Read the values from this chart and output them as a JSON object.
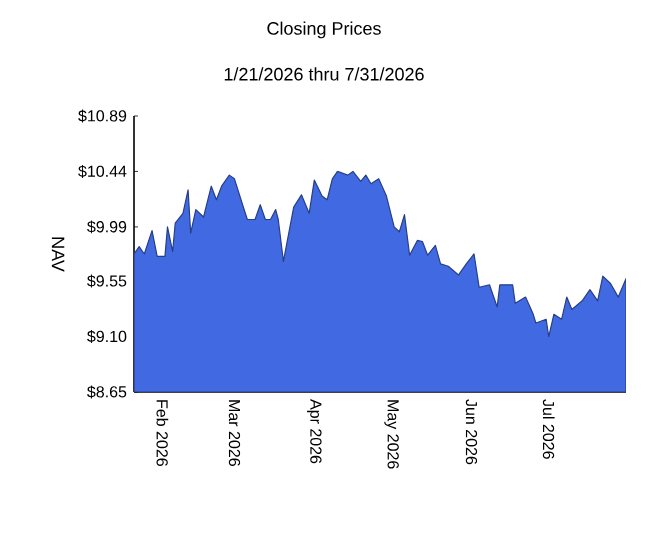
{
  "chart_data": {
    "type": "area",
    "title": "Closing Prices",
    "subtitle": "1/21/2026 thru 7/31/2026",
    "ylabel": "NAV",
    "x": [
      "2026-01-21",
      "2026-01-23",
      "2026-01-25",
      "2026-01-28",
      "2026-01-30",
      "2026-02-02",
      "2026-02-03",
      "2026-02-05",
      "2026-02-06",
      "2026-02-09",
      "2026-02-11",
      "2026-02-12",
      "2026-02-14",
      "2026-02-17",
      "2026-02-20",
      "2026-02-22",
      "2026-02-24",
      "2026-02-27",
      "2026-03-01",
      "2026-03-04",
      "2026-03-06",
      "2026-03-09",
      "2026-03-11",
      "2026-03-13",
      "2026-03-15",
      "2026-03-17",
      "2026-03-18",
      "2026-03-20",
      "2026-03-24",
      "2026-03-27",
      "2026-03-30",
      "2026-04-01",
      "2026-04-04",
      "2026-04-06",
      "2026-04-08",
      "2026-04-10",
      "2026-04-14",
      "2026-04-16",
      "2026-04-19",
      "2026-04-21",
      "2026-04-23",
      "2026-04-26",
      "2026-04-29",
      "2026-05-02",
      "2026-05-04",
      "2026-05-06",
      "2026-05-08",
      "2026-05-11",
      "2026-05-13",
      "2026-05-15",
      "2026-05-18",
      "2026-05-20",
      "2026-05-23",
      "2026-05-27",
      "2026-05-30",
      "2026-06-02",
      "2026-06-04",
      "2026-06-08",
      "2026-06-11",
      "2026-06-12",
      "2026-06-17",
      "2026-06-18",
      "2026-06-22",
      "2026-06-25",
      "2026-06-26",
      "2026-06-30",
      "2026-07-01",
      "2026-07-03",
      "2026-07-06",
      "2026-07-08",
      "2026-07-10",
      "2026-07-14",
      "2026-07-17",
      "2026-07-20",
      "2026-07-22",
      "2026-07-25",
      "2026-07-28",
      "2026-07-31"
    ],
    "series": [
      {
        "color": "#4169e1",
        "values": [
          9.77,
          9.83,
          9.77,
          9.96,
          9.75,
          9.75,
          9.99,
          9.79,
          10.02,
          10.1,
          10.29,
          9.94,
          10.13,
          10.07,
          10.32,
          10.21,
          10.32,
          10.41,
          10.38,
          10.18,
          10.05,
          10.05,
          10.17,
          10.05,
          10.05,
          10.13,
          10.05,
          9.71,
          10.15,
          10.25,
          10.1,
          10.37,
          10.24,
          10.21,
          10.38,
          10.44,
          10.41,
          10.44,
          10.36,
          10.41,
          10.34,
          10.38,
          10.24,
          9.99,
          9.95,
          10.09,
          9.76,
          9.88,
          9.87,
          9.76,
          9.84,
          9.69,
          9.67,
          9.6,
          9.69,
          9.77,
          9.5,
          9.52,
          9.34,
          9.52,
          9.52,
          9.37,
          9.42,
          9.28,
          9.21,
          9.24,
          9.1,
          9.28,
          9.24,
          9.42,
          9.32,
          9.39,
          9.48,
          9.39,
          9.59,
          9.53,
          9.42,
          9.57
        ]
      }
    ],
    "xlim": [
      "2026-01-21",
      "2026-07-31"
    ],
    "xticks": [
      {
        "value": "2026-02-01",
        "label": "Feb 2026"
      },
      {
        "value": "2026-03-01",
        "label": "Mar 2026"
      },
      {
        "value": "2026-04-01",
        "label": "Apr 2026"
      },
      {
        "value": "2026-05-01",
        "label": "May 2026"
      },
      {
        "value": "2026-06-01",
        "label": "Jun 2026"
      },
      {
        "value": "2026-07-01",
        "label": "Jul 2026"
      }
    ],
    "ylim": [
      8.65,
      10.89
    ],
    "yticks": [
      {
        "value": 8.65,
        "label": "$8.65"
      },
      {
        "value": 9.1,
        "label": "$9.10"
      },
      {
        "value": 9.55,
        "label": "$9.55"
      },
      {
        "value": 9.99,
        "label": "$9.99"
      },
      {
        "value": 10.44,
        "label": "$10.44"
      },
      {
        "value": 10.89,
        "label": "$10.89"
      }
    ],
    "line_style": "solid"
  }
}
